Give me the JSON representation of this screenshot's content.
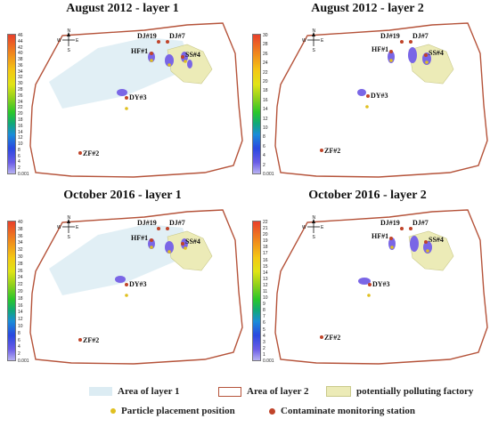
{
  "panels": [
    {
      "title": "August 2012 - layer 1",
      "colorbar_ticks": [
        "46",
        "44",
        "42",
        "40",
        "38",
        "36",
        "34",
        "32",
        "30",
        "28",
        "26",
        "24",
        "22",
        "20",
        "18",
        "16",
        "14",
        "12",
        "10",
        "8",
        "6",
        "4",
        "2",
        "0.001"
      ],
      "layer1_area": true
    },
    {
      "title": "August 2012 - layer 2",
      "colorbar_ticks": [
        "30",
        "28",
        "26",
        "24",
        "22",
        "20",
        "18",
        "16",
        "14",
        "12",
        "10",
        "8",
        "6",
        "4",
        "2",
        "0.001"
      ],
      "layer1_area": false
    },
    {
      "title": "October 2016 - layer 1",
      "colorbar_ticks": [
        "40",
        "38",
        "36",
        "34",
        "32",
        "30",
        "28",
        "26",
        "24",
        "22",
        "20",
        "18",
        "16",
        "14",
        "12",
        "10",
        "8",
        "6",
        "4",
        "2",
        "0.001"
      ],
      "layer1_area": true
    },
    {
      "title": "October 2016 - layer 2",
      "colorbar_ticks": [
        "22",
        "21",
        "20",
        "19",
        "18",
        "17",
        "16",
        "15",
        "14",
        "13",
        "12",
        "11",
        "10",
        "9",
        "8",
        "7",
        "6",
        "5",
        "4",
        "3",
        "2",
        "1",
        "0.001"
      ],
      "layer1_area": false
    }
  ],
  "stations": [
    "DJ#19",
    "DJ#7",
    "HF#1",
    "SS#4",
    "DY#3",
    "ZF#2"
  ],
  "compass": {
    "n": "N",
    "s": "S",
    "e": "E",
    "w": "W"
  },
  "legend": {
    "area_layer1": "Area of layer 1",
    "area_layer2": "Area of layer 2",
    "factory": "potentially polluting factory",
    "particle": "Particle placement position",
    "station": "Contaminate monitoring station"
  },
  "colors": {
    "boundary": "#b5533a",
    "layer1_fill": "#dcecf3",
    "factory_fill": "#ecebb7",
    "factory_stroke": "#c9c98a",
    "plume": "#7a66e6",
    "particle": "#e0c020",
    "station": "#c0442a"
  }
}
